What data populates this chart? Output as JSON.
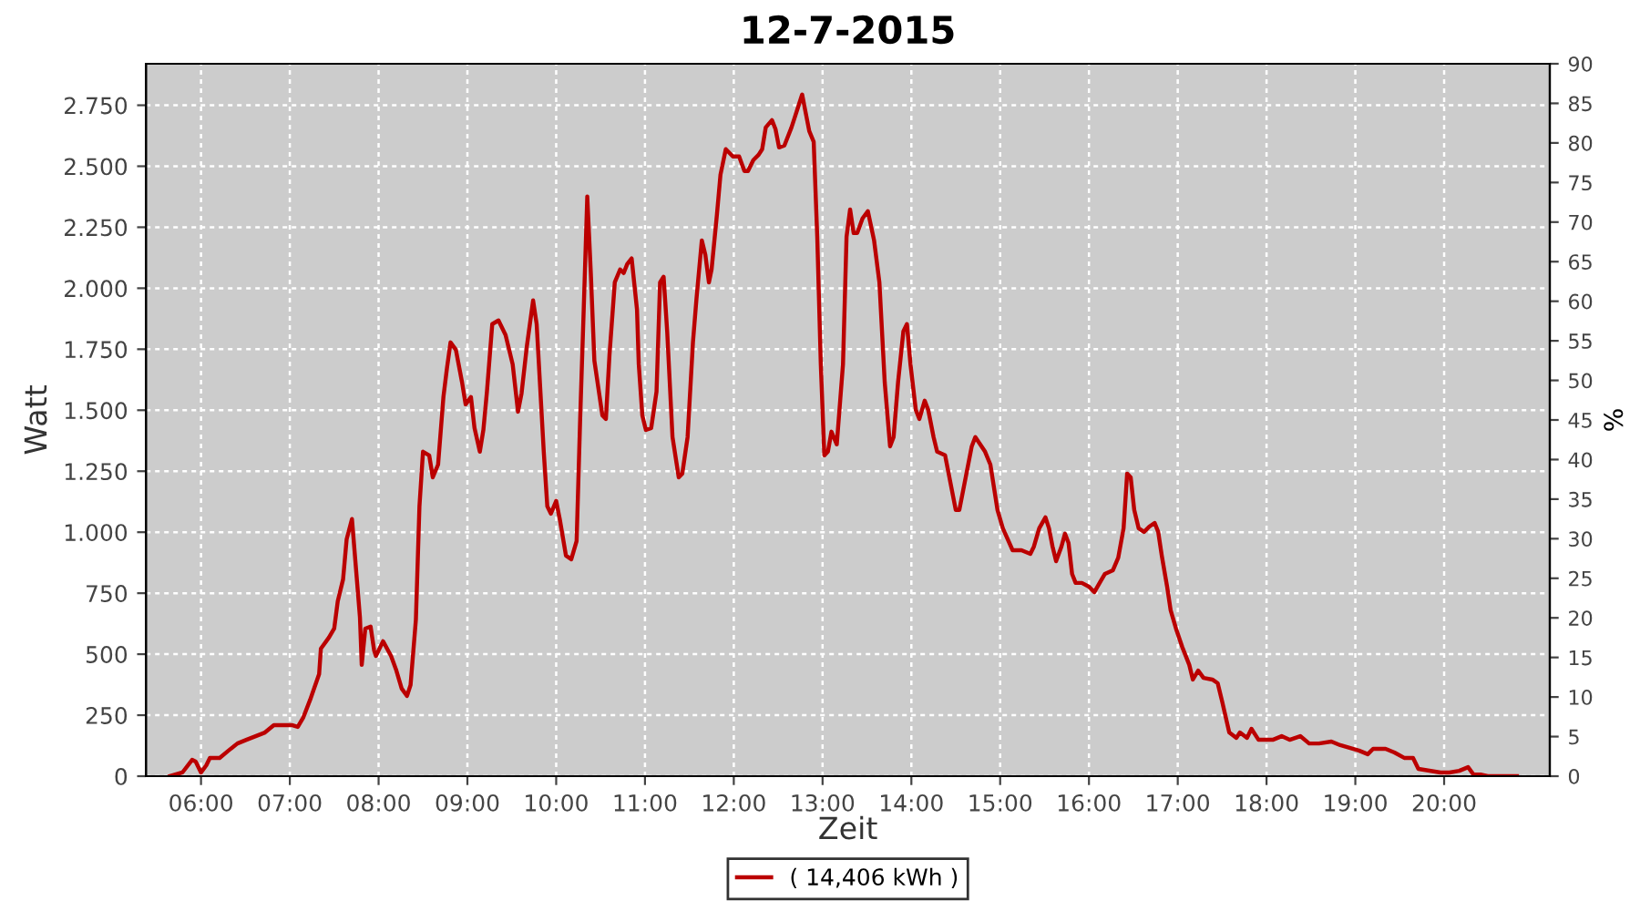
{
  "chart_data": {
    "type": "line",
    "title": "12-7-2015",
    "xlabel": "Zeit",
    "ylabel": "Watt",
    "y2label": "%",
    "x": [
      5.65,
      5.79,
      5.9,
      5.94,
      6.0,
      6.06,
      6.1,
      6.21,
      6.31,
      6.41,
      6.51,
      6.72,
      6.82,
      7.03,
      7.09,
      7.15,
      7.23,
      7.33,
      7.35,
      7.44,
      7.5,
      7.54,
      7.6,
      7.64,
      7.7,
      7.79,
      7.81,
      7.85,
      7.91,
      7.95,
      7.97,
      8.05,
      8.14,
      8.2,
      8.26,
      8.32,
      8.36,
      8.42,
      8.46,
      8.5,
      8.57,
      8.61,
      8.67,
      8.73,
      8.77,
      8.81,
      8.87,
      8.94,
      8.98,
      9.04,
      9.08,
      9.14,
      9.18,
      9.22,
      9.28,
      9.35,
      9.43,
      9.51,
      9.57,
      9.61,
      9.67,
      9.74,
      9.78,
      9.86,
      9.9,
      9.94,
      10.0,
      10.04,
      10.11,
      10.17,
      10.23,
      10.27,
      10.31,
      10.35,
      10.39,
      10.43,
      10.52,
      10.56,
      10.6,
      10.66,
      10.72,
      10.76,
      10.8,
      10.85,
      10.91,
      10.93,
      10.97,
      11.01,
      11.07,
      11.13,
      11.17,
      11.21,
      11.25,
      11.31,
      11.38,
      11.42,
      11.48,
      11.54,
      11.58,
      11.64,
      11.68,
      11.72,
      11.75,
      11.81,
      11.85,
      11.91,
      11.99,
      12.06,
      12.12,
      12.16,
      12.22,
      12.28,
      12.32,
      12.36,
      12.43,
      12.47,
      12.51,
      12.57,
      12.65,
      12.69,
      12.73,
      12.77,
      12.81,
      12.85,
      12.9,
      12.94,
      12.98,
      13.02,
      13.06,
      13.1,
      13.16,
      13.23,
      13.27,
      13.31,
      13.35,
      13.39,
      13.45,
      13.51,
      13.58,
      13.64,
      13.7,
      13.76,
      13.8,
      13.85,
      13.91,
      13.95,
      13.99,
      14.05,
      14.09,
      14.15,
      14.19,
      14.25,
      14.29,
      14.38,
      14.44,
      14.5,
      14.54,
      14.62,
      14.68,
      14.72,
      14.83,
      14.89,
      14.97,
      15.03,
      15.14,
      15.24,
      15.34,
      15.38,
      15.44,
      15.51,
      15.55,
      15.59,
      15.63,
      15.69,
      15.73,
      15.77,
      15.81,
      15.85,
      15.92,
      16.0,
      16.06,
      16.12,
      16.18,
      16.27,
      16.33,
      16.39,
      16.43,
      16.47,
      16.51,
      16.56,
      16.62,
      16.68,
      16.74,
      16.78,
      16.82,
      16.88,
      16.92,
      16.98,
      17.05,
      17.13,
      17.17,
      17.23,
      17.29,
      17.39,
      17.45,
      17.5,
      17.58,
      17.66,
      17.7,
      17.78,
      17.83,
      17.91,
      18.07,
      18.17,
      18.26,
      18.38,
      18.48,
      18.59,
      18.73,
      18.83,
      19.04,
      19.14,
      19.2,
      19.34,
      19.44,
      19.55,
      19.65,
      19.71,
      19.96,
      20.06,
      20.17,
      20.27,
      20.33,
      20.41,
      20.49,
      20.82
    ],
    "series": [
      {
        "name": "( 14,406 kWh )",
        "color": "#bb0000",
        "values": [
          0,
          15,
          67,
          60,
          15,
          45,
          75,
          75,
          105,
          134,
          149,
          179,
          209,
          209,
          202,
          239,
          314,
          418,
          523,
          568,
          605,
          717,
          807,
          971,
          1054,
          650,
          456,
          605,
          613,
          515,
          493,
          553,
          493,
          433,
          359,
          329,
          374,
          642,
          1106,
          1330,
          1315,
          1225,
          1277,
          1554,
          1673,
          1778,
          1748,
          1614,
          1524,
          1554,
          1427,
          1330,
          1419,
          1576,
          1853,
          1868,
          1808,
          1688,
          1494,
          1569,
          1763,
          1950,
          1853,
          1330,
          1106,
          1076,
          1128,
          1054,
          904,
          889,
          964,
          1464,
          1913,
          2376,
          2062,
          1703,
          1479,
          1464,
          1726,
          2024,
          2077,
          2062,
          2099,
          2122,
          1913,
          1688,
          1479,
          1419,
          1427,
          1576,
          2024,
          2047,
          1823,
          1390,
          1225,
          1240,
          1390,
          1778,
          1957,
          2196,
          2137,
          2024,
          2077,
          2301,
          2465,
          2570,
          2540,
          2540,
          2480,
          2480,
          2525,
          2547,
          2570,
          2659,
          2689,
          2652,
          2577,
          2585,
          2659,
          2704,
          2749,
          2794,
          2719,
          2644,
          2600,
          2211,
          1688,
          1315,
          1330,
          1412,
          1360,
          1688,
          2211,
          2323,
          2226,
          2226,
          2286,
          2316,
          2196,
          2024,
          1614,
          1352,
          1390,
          1614,
          1823,
          1853,
          1688,
          1501,
          1464,
          1539,
          1501,
          1390,
          1330,
          1315,
          1203,
          1091,
          1091,
          1240,
          1352,
          1390,
          1330,
          1277,
          1091,
          1016,
          926,
          926,
          911,
          941,
          1016,
          1061,
          1016,
          941,
          881,
          941,
          994,
          956,
          829,
          792,
          792,
          777,
          754,
          792,
          829,
          844,
          896,
          1016,
          1240,
          1225,
          1091,
          1016,
          1001,
          1023,
          1038,
          1001,
          904,
          777,
          680,
          605,
          530,
          456,
          396,
          433,
          403,
          396,
          381,
          306,
          179,
          157,
          179,
          157,
          194,
          149,
          149,
          164,
          149,
          164,
          134,
          134,
          142,
          127,
          105,
          90,
          112,
          112,
          97,
          75,
          75,
          30,
          15,
          15,
          22,
          37,
          7,
          7,
          0,
          0
        ]
      }
    ],
    "xlim": [
      5.38,
      21.19
    ],
    "xticks": [
      {
        "value": 6,
        "label": "06:00"
      },
      {
        "value": 7,
        "label": "07:00"
      },
      {
        "value": 8,
        "label": "08:00"
      },
      {
        "value": 9,
        "label": "09:00"
      },
      {
        "value": 10,
        "label": "10:00"
      },
      {
        "value": 11,
        "label": "11:00"
      },
      {
        "value": 12,
        "label": "12:00"
      },
      {
        "value": 13,
        "label": "13:00"
      },
      {
        "value": 14,
        "label": "14:00"
      },
      {
        "value": 15,
        "label": "15:00"
      },
      {
        "value": 16,
        "label": "16:00"
      },
      {
        "value": 17,
        "label": "17:00"
      },
      {
        "value": 18,
        "label": "18:00"
      },
      {
        "value": 19,
        "label": "19:00"
      },
      {
        "value": 20,
        "label": "20:00"
      }
    ],
    "ylim": [
      0,
      2920
    ],
    "yticks": [
      0,
      250,
      500,
      750,
      {
        "value": 1000,
        "label": "1.000"
      },
      {
        "value": 1250,
        "label": "1.250"
      },
      {
        "value": 1500,
        "label": "1.500"
      },
      {
        "value": 1750,
        "label": "1.750"
      },
      {
        "value": 2000,
        "label": "2.000"
      },
      {
        "value": 2250,
        "label": "2.250"
      },
      {
        "value": 2500,
        "label": "2.500"
      },
      {
        "value": 2750,
        "label": "2.750"
      }
    ],
    "y2lim": [
      0,
      90
    ],
    "y2ticks": [
      0,
      5,
      10,
      15,
      20,
      25,
      30,
      35,
      40,
      45,
      50,
      55,
      60,
      65,
      70,
      75,
      80,
      85,
      90
    ],
    "grid": true,
    "legend": "bottom",
    "line_style": "solid"
  }
}
